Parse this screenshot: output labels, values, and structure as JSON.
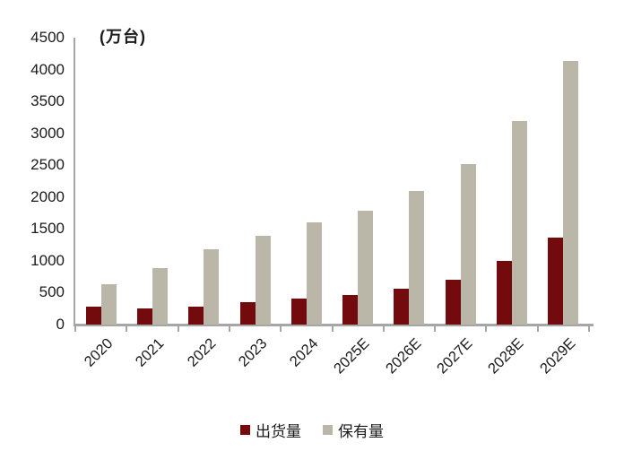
{
  "chart_data": {
    "type": "bar",
    "title": "",
    "unit_label": "(万台)",
    "categories": [
      "2020",
      "2021",
      "2022",
      "2023",
      "2024",
      "2025E",
      "2026E",
      "2027E",
      "2028E",
      "2029E"
    ],
    "series": [
      {
        "name": "出货量",
        "color": "#730a0d",
        "values": [
          280,
          260,
          280,
          350,
          410,
          470,
          560,
          700,
          1000,
          1360
        ]
      },
      {
        "name": "保有量",
        "color": "#bab7a8",
        "values": [
          630,
          890,
          1180,
          1390,
          1600,
          1790,
          2100,
          2520,
          3190,
          4130
        ]
      }
    ],
    "ylabel": "",
    "xlabel": "",
    "ylim": [
      0,
      4500
    ],
    "ytick_step": 500,
    "yticks": [
      "0",
      "500",
      "1000",
      "1500",
      "2000",
      "2500",
      "3000",
      "3500",
      "4000",
      "4500"
    ],
    "grid": false,
    "legend_position": "bottom",
    "axis_color": "#a6a6a6",
    "text_color": "#1a1a1a"
  }
}
